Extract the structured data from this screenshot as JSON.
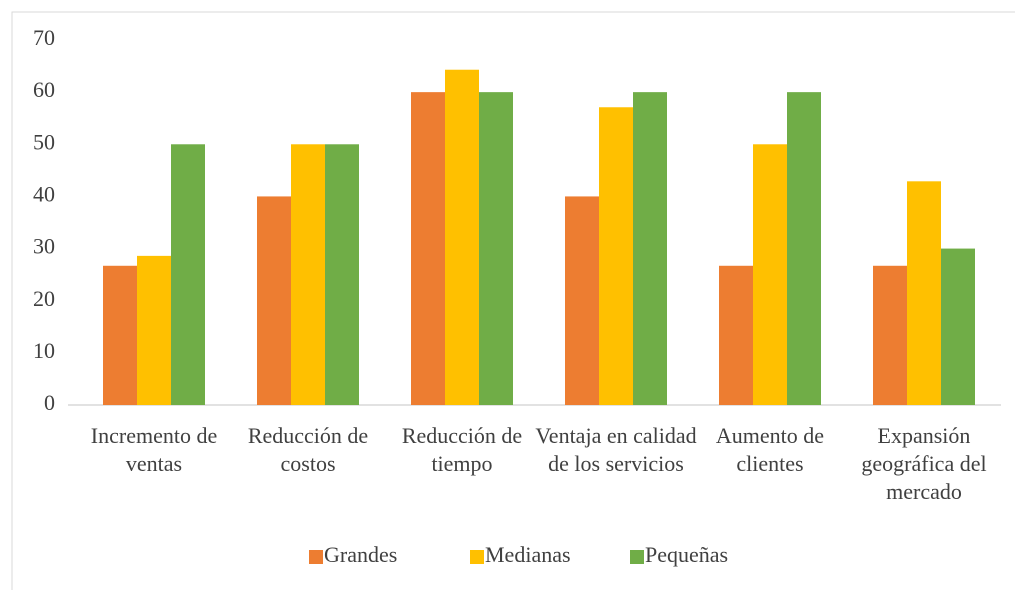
{
  "chart_data": {
    "type": "bar",
    "categories": [
      "Incremento de ventas",
      "Reducción de costos",
      "Reducción de tiempo",
      "Ventaja en calidad de los servicios",
      "Aumento de clientes",
      "Expansión geográfica del mercado"
    ],
    "series": [
      {
        "name": "Grandes",
        "color": "#ED7D31",
        "values": [
          26.7,
          40,
          60,
          40,
          26.7,
          26.7
        ]
      },
      {
        "name": "Medianas",
        "color": "#FFC000",
        "values": [
          28.6,
          50,
          64.3,
          57.1,
          50,
          42.9
        ]
      },
      {
        "name": "Pequeñas",
        "color": "#70AD47",
        "values": [
          50,
          50,
          60,
          60,
          60,
          30
        ]
      }
    ],
    "ylim": [
      0,
      70
    ],
    "yticks": [
      0,
      10,
      20,
      30,
      40,
      50,
      60,
      70
    ],
    "grid": false,
    "legend": "bottom"
  }
}
